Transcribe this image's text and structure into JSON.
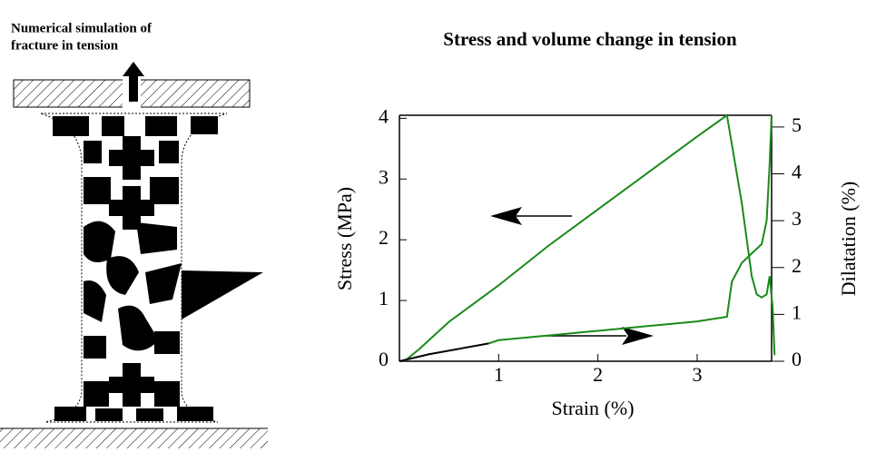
{
  "illustration": {
    "title_lines": [
      "Numerical simulation of",
      "fracture in tension"
    ]
  },
  "chart_data": {
    "type": "line",
    "title": "Stress and volume change in tension",
    "x_label": "Strain (%)",
    "y_label": "Stress (MPa)",
    "y2_label": "Dilatation (%)",
    "xlim": [
      0,
      3.75
    ],
    "xticks": [
      1,
      2,
      3
    ],
    "ylim": [
      0,
      4.05
    ],
    "yticks": [
      0,
      1,
      2,
      3,
      4
    ],
    "y2lim": [
      0,
      5.25
    ],
    "y2ticks": [
      0,
      1,
      2,
      3,
      4,
      5
    ],
    "series": [
      {
        "color": "#1a8a1a",
        "axis": "y",
        "x": [
          0.05,
          0.2,
          0.5,
          1,
          1.5,
          2,
          2.5,
          3,
          3.3,
          3.45,
          3.55,
          3.6,
          3.65,
          3.7,
          3.73,
          3.76,
          3.78
        ],
        "values": [
          0,
          0.2,
          0.65,
          1.25,
          1.9,
          2.5,
          3.1,
          3.7,
          4.05,
          2.6,
          1.4,
          1.1,
          1.05,
          1.1,
          1.4,
          0.9,
          0.1
        ]
      },
      {
        "color": "#1a8a1a",
        "axis": "y2",
        "x": [
          0.9,
          1,
          1.5,
          2,
          2.5,
          3,
          3.3,
          3.35,
          3.45,
          3.55,
          3.65,
          3.7,
          3.73,
          3.75
        ],
        "values": [
          0.38,
          0.45,
          0.55,
          0.65,
          0.75,
          0.85,
          0.95,
          1.7,
          2.1,
          2.3,
          2.5,
          3.0,
          4.2,
          5.25
        ]
      },
      {
        "color": "#000000",
        "axis": "y2",
        "x": [
          0,
          0.3,
          0.9
        ],
        "values": [
          0,
          0.15,
          0.38
        ]
      }
    ]
  }
}
